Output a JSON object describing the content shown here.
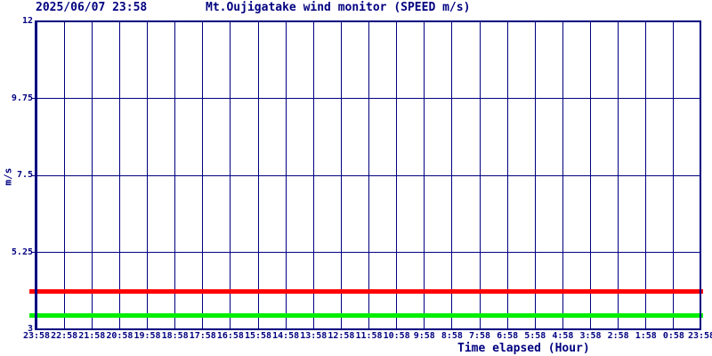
{
  "colors": {
    "navy": "#000080",
    "background": "#ffffff",
    "red_line": "#ff0000",
    "green_line": "#00ee00"
  },
  "header": {
    "timestamp": "2025/06/07 23:58",
    "title": "Mt.Oujigatake wind monitor (SPEED m/s)"
  },
  "chart_data": {
    "type": "line",
    "title": "Mt.Oujigatake wind monitor (SPEED m/s)",
    "timestamp": "2025/06/07 23:58",
    "xlabel": "Time elapsed (Hour)",
    "ylabel": "m/s",
    "ylim": [
      3,
      12
    ],
    "ytick_values": [
      12,
      9.75,
      7.5,
      5.25,
      3
    ],
    "ytick_labels": [
      "12",
      "9.75",
      "7.5",
      "5.25",
      "3"
    ],
    "ygrid_values": [
      9.75,
      7.5,
      5.25
    ],
    "xtick_labels": [
      "23:58",
      "22:58",
      "21:58",
      "20:58",
      "19:58",
      "18:58",
      "17:58",
      "16:58",
      "15:58",
      "14:58",
      "13:58",
      "12:58",
      "11:58",
      "10:58",
      "9:58",
      "8:58",
      "7:58",
      "6:58",
      "5:58",
      "4:58",
      "3:58",
      "2:58",
      "1:58",
      "0:58",
      "23:58"
    ],
    "grid": true,
    "legend": "none",
    "series": [
      {
        "name": "red-line",
        "color": "#ff0000",
        "value": 4.1,
        "shape": "constant horizontal line spanning all 24 hours"
      },
      {
        "name": "green-line",
        "color": "#00ee00",
        "value": 3.4,
        "shape": "constant horizontal line spanning all 24 hours"
      }
    ]
  }
}
